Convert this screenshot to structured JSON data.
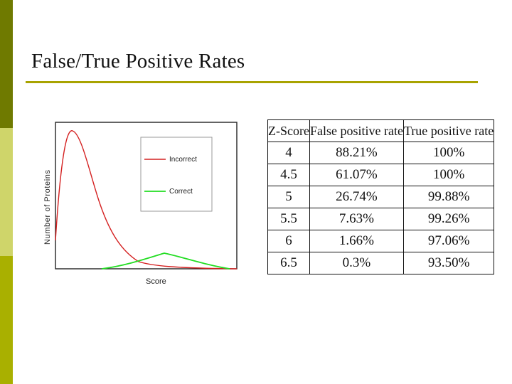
{
  "slide": {
    "title": "False/True  Positive Rates",
    "colors": {
      "stripe_dark": "#6f7a00",
      "stripe_light": "#cfd56a",
      "stripe_mid": "#a9b000",
      "rule": "#a8a300"
    }
  },
  "chart_data": {
    "type": "line",
    "xlabel": "Score",
    "ylabel": "Number of Proteins",
    "grid": false,
    "legend_placement": "top-right",
    "series": [
      {
        "name": "Incorrect",
        "color": "#d42020"
      },
      {
        "name": "Correct",
        "color": "#22dd22"
      }
    ]
  },
  "table": {
    "headers": [
      "Z-Score",
      "False positive rate",
      "True positive rate"
    ],
    "rows": [
      [
        "4",
        "88.21%",
        "100%"
      ],
      [
        "4.5",
        "61.07%",
        "100%"
      ],
      [
        "5",
        "26.74%",
        "99.88%"
      ],
      [
        "5.5",
        "7.63%",
        "99.26%"
      ],
      [
        "6",
        "1.66%",
        "97.06%"
      ],
      [
        "6.5",
        "0.3%",
        "93.50%"
      ]
    ]
  }
}
